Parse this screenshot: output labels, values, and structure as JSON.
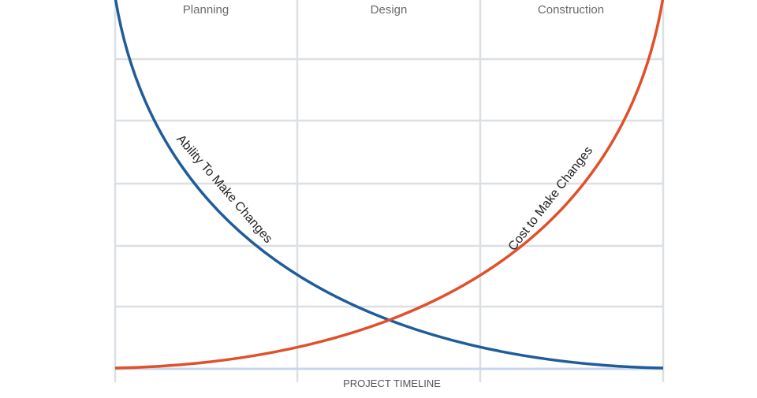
{
  "phases": [
    "Planning",
    "Design",
    "Construction"
  ],
  "curves": {
    "ability": "Ability To Make Changes",
    "cost": "Cost to Make Changes"
  },
  "axis_label": "PROJECT TIMELINE"
}
